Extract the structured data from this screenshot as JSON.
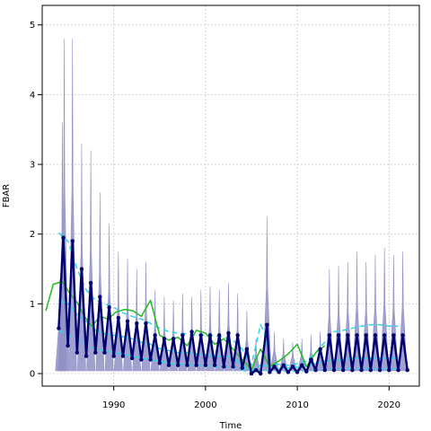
{
  "chart_data": {
    "type": "line",
    "xlabel": "Time",
    "ylabel": "FBAR",
    "xlim": [
      1982.2,
      2023.3
    ],
    "ylim": [
      -0.18,
      5.28
    ],
    "x_ticks": [
      1990,
      2000,
      2010,
      2020
    ],
    "y_ticks": [
      0,
      1,
      2,
      3,
      4,
      5
    ],
    "grid": true,
    "legend": "none",
    "colors": {
      "spikes": "#9090c8",
      "seasonal": "#00006e",
      "cyan": "#2ad7e8",
      "green": "#22bb22"
    },
    "seasonal_spike_peaks": [
      {
        "x": 1984.1,
        "y": 1.35
      },
      {
        "x": 1984.4,
        "y": 3.6
      },
      {
        "x": 1984.6,
        "y": 4.8
      },
      {
        "x": 1985.5,
        "y": 4.8
      },
      {
        "x": 1986.5,
        "y": 3.3
      },
      {
        "x": 1987.5,
        "y": 3.2
      },
      {
        "x": 1988.5,
        "y": 2.6
      },
      {
        "x": 1989.5,
        "y": 2.15
      },
      {
        "x": 1990.5,
        "y": 1.75
      },
      {
        "x": 1991.5,
        "y": 1.65
      },
      {
        "x": 1992.5,
        "y": 1.5
      },
      {
        "x": 1993.5,
        "y": 1.6
      },
      {
        "x": 1994.5,
        "y": 1.2
      },
      {
        "x": 1995.5,
        "y": 1.1
      },
      {
        "x": 1996.5,
        "y": 1.05
      },
      {
        "x": 1997.5,
        "y": 1.15
      },
      {
        "x": 1998.5,
        "y": 1.1
      },
      {
        "x": 1999.5,
        "y": 1.2
      },
      {
        "x": 2000.5,
        "y": 1.25
      },
      {
        "x": 2001.5,
        "y": 1.2
      },
      {
        "x": 2002.5,
        "y": 1.3
      },
      {
        "x": 2003.5,
        "y": 1.15
      },
      {
        "x": 2004.5,
        "y": 0.9
      },
      {
        "x": 2005.5,
        "y": 0.5
      },
      {
        "x": 2006.7,
        "y": 2.25
      },
      {
        "x": 2007.5,
        "y": 0.6
      },
      {
        "x": 2008.5,
        "y": 0.5
      },
      {
        "x": 2009.5,
        "y": 0.45
      },
      {
        "x": 2010.5,
        "y": 0.5
      },
      {
        "x": 2011.5,
        "y": 0.55
      },
      {
        "x": 2012.5,
        "y": 0.6
      },
      {
        "x": 2013.5,
        "y": 1.5
      },
      {
        "x": 2014.5,
        "y": 1.55
      },
      {
        "x": 2015.5,
        "y": 1.6
      },
      {
        "x": 2016.5,
        "y": 1.75
      },
      {
        "x": 2017.5,
        "y": 1.6
      },
      {
        "x": 2018.5,
        "y": 1.7
      },
      {
        "x": 2019.5,
        "y": 1.8
      },
      {
        "x": 2020.5,
        "y": 1.7
      },
      {
        "x": 2021.5,
        "y": 1.75
      }
    ],
    "seasonal_series_peaks": [
      {
        "x": 1984.5,
        "y": 1.95
      },
      {
        "x": 1985.5,
        "y": 1.9
      },
      {
        "x": 1986.5,
        "y": 1.5
      },
      {
        "x": 1987.5,
        "y": 1.3
      },
      {
        "x": 1988.5,
        "y": 1.1
      },
      {
        "x": 1989.5,
        "y": 0.95
      },
      {
        "x": 1990.5,
        "y": 0.8
      },
      {
        "x": 1991.5,
        "y": 0.75
      },
      {
        "x": 1992.5,
        "y": 0.72
      },
      {
        "x": 1993.5,
        "y": 0.72
      },
      {
        "x": 1994.5,
        "y": 0.55
      },
      {
        "x": 1995.5,
        "y": 0.5
      },
      {
        "x": 1996.5,
        "y": 0.5
      },
      {
        "x": 1997.5,
        "y": 0.55
      },
      {
        "x": 1998.5,
        "y": 0.6
      },
      {
        "x": 1999.5,
        "y": 0.55
      },
      {
        "x": 2000.5,
        "y": 0.55
      },
      {
        "x": 2001.5,
        "y": 0.55
      },
      {
        "x": 2002.5,
        "y": 0.58
      },
      {
        "x": 2003.5,
        "y": 0.55
      },
      {
        "x": 2004.5,
        "y": 0.35
      },
      {
        "x": 2005.5,
        "y": 0.05
      },
      {
        "x": 2006.7,
        "y": 0.7
      },
      {
        "x": 2007.5,
        "y": 0.1
      },
      {
        "x": 2008.5,
        "y": 0.12
      },
      {
        "x": 2009.5,
        "y": 0.1
      },
      {
        "x": 2010.5,
        "y": 0.12
      },
      {
        "x": 2011.5,
        "y": 0.2
      },
      {
        "x": 2012.5,
        "y": 0.35
      },
      {
        "x": 2013.5,
        "y": 0.55
      },
      {
        "x": 2014.5,
        "y": 0.55
      },
      {
        "x": 2015.5,
        "y": 0.55
      },
      {
        "x": 2016.5,
        "y": 0.55
      },
      {
        "x": 2017.5,
        "y": 0.55
      },
      {
        "x": 2018.5,
        "y": 0.55
      },
      {
        "x": 2019.5,
        "y": 0.55
      },
      {
        "x": 2020.5,
        "y": 0.55
      },
      {
        "x": 2021.5,
        "y": 0.55
      }
    ],
    "seasonal_series_troughs": [
      {
        "x": 1984.0,
        "y": 0.65
      },
      {
        "x": 1985.0,
        "y": 0.4
      },
      {
        "x": 1986.0,
        "y": 0.3
      },
      {
        "x": 1987.0,
        "y": 0.25
      },
      {
        "x": 1988.0,
        "y": 0.3
      },
      {
        "x": 1989.0,
        "y": 0.3
      },
      {
        "x": 1990.0,
        "y": 0.25
      },
      {
        "x": 1991.0,
        "y": 0.25
      },
      {
        "x": 1992.0,
        "y": 0.22
      },
      {
        "x": 1993.0,
        "y": 0.2
      },
      {
        "x": 1994.0,
        "y": 0.2
      },
      {
        "x": 1995.0,
        "y": 0.15
      },
      {
        "x": 1996.0,
        "y": 0.12
      },
      {
        "x": 1997.0,
        "y": 0.12
      },
      {
        "x": 1998.0,
        "y": 0.12
      },
      {
        "x": 1999.0,
        "y": 0.12
      },
      {
        "x": 2000.0,
        "y": 0.12
      },
      {
        "x": 2001.0,
        "y": 0.12
      },
      {
        "x": 2002.0,
        "y": 0.1
      },
      {
        "x": 2003.0,
        "y": 0.1
      },
      {
        "x": 2004.0,
        "y": 0.08
      },
      {
        "x": 2005.0,
        "y": 0.0
      },
      {
        "x": 2006.0,
        "y": 0.0
      },
      {
        "x": 2007.0,
        "y": 0.02
      },
      {
        "x": 2008.0,
        "y": 0.02
      },
      {
        "x": 2009.0,
        "y": 0.02
      },
      {
        "x": 2010.0,
        "y": 0.02
      },
      {
        "x": 2011.0,
        "y": 0.03
      },
      {
        "x": 2012.0,
        "y": 0.05
      },
      {
        "x": 2013.0,
        "y": 0.05
      },
      {
        "x": 2014.0,
        "y": 0.05
      },
      {
        "x": 2015.0,
        "y": 0.05
      },
      {
        "x": 2016.0,
        "y": 0.05
      },
      {
        "x": 2017.0,
        "y": 0.05
      },
      {
        "x": 2018.0,
        "y": 0.05
      },
      {
        "x": 2019.0,
        "y": 0.05
      },
      {
        "x": 2020.0,
        "y": 0.05
      },
      {
        "x": 2021.0,
        "y": 0.05
      },
      {
        "x": 2022.0,
        "y": 0.05
      }
    ],
    "series": [
      {
        "style": "solid",
        "color": "#2ad7e8",
        "x": [
          1984,
          1985,
          1986,
          1987,
          1988,
          1989,
          1990,
          1991,
          1992,
          1993,
          1994,
          1995,
          1996,
          1997,
          1998,
          1999,
          2000,
          2001,
          2002,
          2003,
          2004,
          2005,
          2006,
          2007,
          2008,
          2009,
          2010,
          2011,
          2012,
          2013,
          2014,
          2015,
          2016,
          2017,
          2018,
          2019,
          2020,
          2021
        ],
        "y": [
          1.05,
          1.0,
          0.85,
          0.75,
          0.62,
          0.57,
          0.55,
          0.53,
          0.5,
          0.45,
          0.42,
          0.36,
          0.33,
          0.3,
          0.3,
          0.28,
          0.27,
          0.25,
          0.25,
          0.23,
          0.12,
          0.03,
          0.12,
          0.1,
          0.07,
          0.08,
          0.09,
          0.11,
          0.14,
          0.18,
          0.19,
          0.2,
          0.22,
          0.22,
          0.22,
          0.22,
          0.22,
          0.22
        ]
      },
      {
        "style": "dashed",
        "color": "#2ad7e8",
        "x": [
          1984,
          1985,
          1986,
          1987,
          1988,
          1989,
          1990,
          1991,
          1992,
          1993,
          1994,
          1995,
          1996,
          1997,
          1998,
          1999,
          2000,
          2001,
          2002,
          2003,
          2004,
          2005,
          2006,
          2006.5,
          2007,
          2008,
          2009,
          2010,
          2011,
          2012,
          2013,
          2014,
          2015,
          2016,
          2017,
          2018,
          2019,
          2020,
          2021
        ],
        "y": [
          2.02,
          1.9,
          1.5,
          1.2,
          1.05,
          1.0,
          0.95,
          0.87,
          0.82,
          0.78,
          0.72,
          0.65,
          0.6,
          0.58,
          0.57,
          0.55,
          0.55,
          0.54,
          0.52,
          0.48,
          0.35,
          0.12,
          0.7,
          0.55,
          0.15,
          0.13,
          0.12,
          0.14,
          0.18,
          0.3,
          0.45,
          0.6,
          0.62,
          0.65,
          0.68,
          0.7,
          0.7,
          0.68,
          0.68
        ]
      },
      {
        "style": "dashed",
        "color": "#2ad7e8",
        "x": [
          1984,
          1985,
          1986,
          1987,
          1988,
          1989,
          1990,
          1991,
          1992,
          1993,
          1994,
          1995,
          1996,
          1997,
          1998,
          1999,
          2000,
          2001,
          2002,
          2003,
          2004,
          2005,
          2006,
          2007,
          2008,
          2009,
          2010,
          2011,
          2012,
          2013,
          2014,
          2015,
          2016,
          2017,
          2018,
          2019,
          2020,
          2021
        ],
        "y": [
          0.62,
          0.55,
          0.5,
          0.42,
          0.35,
          0.33,
          0.3,
          0.28,
          0.25,
          0.22,
          0.2,
          0.17,
          0.15,
          0.13,
          0.13,
          0.12,
          0.11,
          0.1,
          0.1,
          0.09,
          0.05,
          0.0,
          0.05,
          0.04,
          0.03,
          0.03,
          0.03,
          0.04,
          0.05,
          0.06,
          0.06,
          0.07,
          0.07,
          0.07,
          0.07,
          0.07,
          0.07,
          0.07
        ]
      },
      {
        "style": "solid",
        "color": "#22bb22",
        "x": [
          1982.6,
          1983.4,
          1984.4,
          1985.2,
          1986.0,
          1986.8,
          1987.6,
          1988.5,
          1989.4,
          1990.2,
          1991.2,
          1992.1,
          1993.0,
          1994.0,
          1995.0,
          1996.0,
          1997.0,
          1998.0,
          1999.0,
          2000.0,
          2001.0,
          2002.0,
          2003.0,
          2004.0,
          2005.0,
          2006.0,
          2007.0,
          2008.0,
          2009.0,
          2010.0,
          2011.0,
          2012.0,
          2013.0
        ],
        "y": [
          0.9,
          1.28,
          1.32,
          1.15,
          1.02,
          0.82,
          0.68,
          0.82,
          0.78,
          0.88,
          0.92,
          0.9,
          0.82,
          1.05,
          0.55,
          0.48,
          0.52,
          0.4,
          0.62,
          0.58,
          0.42,
          0.5,
          0.35,
          0.2,
          0.06,
          0.35,
          0.1,
          0.18,
          0.28,
          0.42,
          0.1,
          0.3,
          0.4
        ]
      }
    ]
  }
}
